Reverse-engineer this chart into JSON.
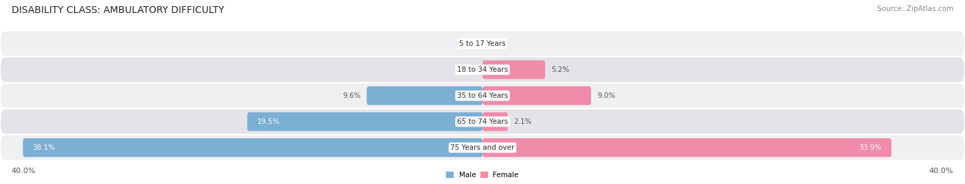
{
  "title": "DISABILITY CLASS: AMBULATORY DIFFICULTY",
  "source": "Source: ZipAtlas.com",
  "categories": [
    "5 to 17 Years",
    "18 to 34 Years",
    "35 to 64 Years",
    "65 to 74 Years",
    "75 Years and over"
  ],
  "male_values": [
    0.0,
    0.0,
    9.6,
    19.5,
    38.1
  ],
  "female_values": [
    0.0,
    5.2,
    9.0,
    2.1,
    33.9
  ],
  "max_val": 40.0,
  "male_color": "#7bafd4",
  "female_color": "#f08baa",
  "row_bg_light": "#f0f0f2",
  "row_bg_dark": "#e4e4e8",
  "label_color_dark": "#555555",
  "label_color_white": "#ffffff",
  "title_fontsize": 10,
  "source_fontsize": 7.5,
  "label_fontsize": 7.5,
  "category_fontsize": 7.5,
  "axis_label_fontsize": 8,
  "background_color": "#ffffff"
}
